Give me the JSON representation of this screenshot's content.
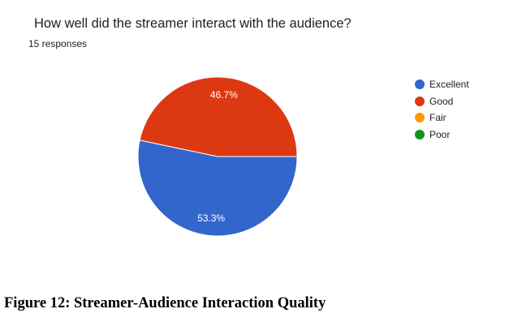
{
  "chart_data": {
    "type": "pie",
    "title": "How well did the streamer interact with the audience?",
    "subtitle": "15 responses",
    "categories": [
      "Excellent",
      "Good",
      "Fair",
      "Poor"
    ],
    "values": [
      53.3,
      46.7,
      0,
      0
    ],
    "value_labels": [
      "53.3%",
      "46.7%",
      "",
      ""
    ],
    "colors": [
      "#3366cc",
      "#dc3912",
      "#ff9900",
      "#109618"
    ],
    "legend": "right"
  },
  "figure": {
    "caption": "Figure 12: Streamer-Audience Interaction Quality"
  }
}
